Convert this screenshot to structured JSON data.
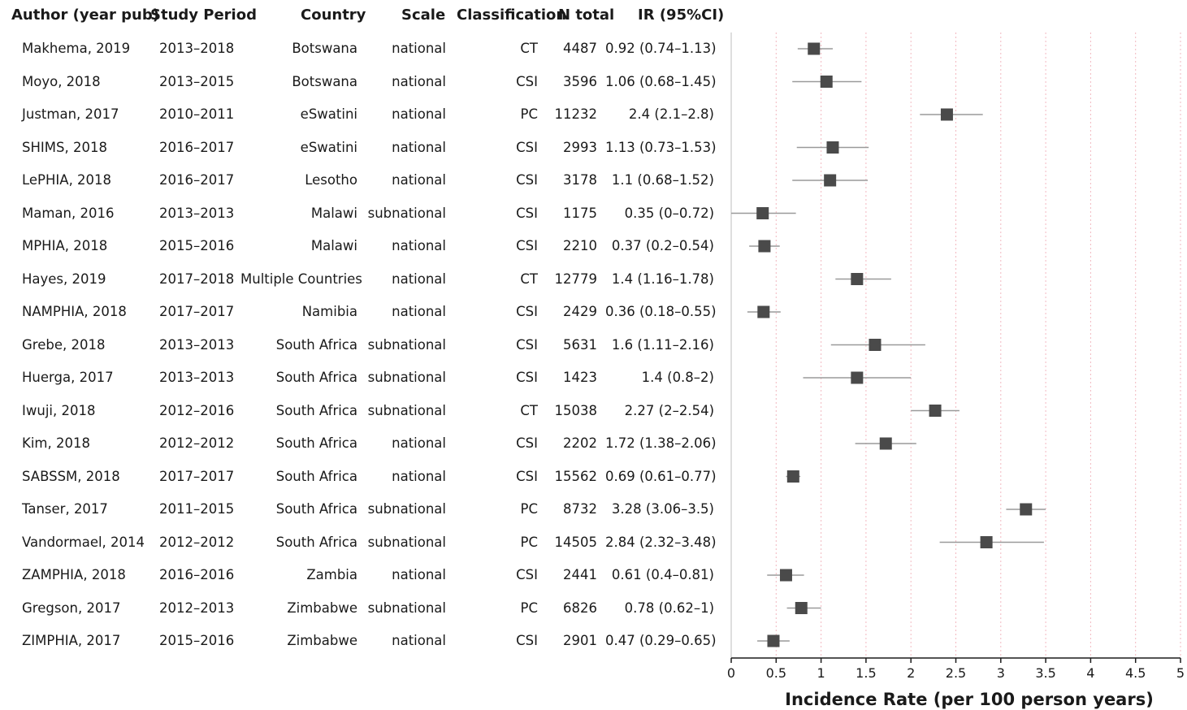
{
  "chart_data": {
    "type": "forest",
    "columns": {
      "author": "Author (year pub)",
      "period": "Study Period",
      "country": "Country",
      "scale": "Scale",
      "classification": "Classification",
      "n": "N total",
      "ir": "IR (95%CI)"
    },
    "xlabel": "Incidence Rate (per 100 person years)",
    "xlim": [
      0,
      5
    ],
    "xticks": [
      "0",
      "0.5",
      "1",
      "1.5",
      "2",
      "2.5",
      "3",
      "3.5",
      "4",
      "4.5",
      "5"
    ],
    "xtick_values": [
      0,
      0.5,
      1,
      1.5,
      2,
      2.5,
      3,
      3.5,
      4,
      4.5,
      5
    ],
    "grid": "vertical-dotted",
    "colors": {
      "marker": "#4a4a4a",
      "ci_line": "#9a9a9a",
      "grid": "#f2b8c0",
      "axis": "#1a1a1a"
    },
    "rows": [
      {
        "author": "Makhema, 2019",
        "period": "2013–2018",
        "country": "Botswana",
        "scale": "national",
        "classification": "CT",
        "n": "4487",
        "ir_text": "0.92 (0.74–1.13)",
        "ir": 0.92,
        "lo": 0.74,
        "hi": 1.13
      },
      {
        "author": "Moyo, 2018",
        "period": "2013–2015",
        "country": "Botswana",
        "scale": "national",
        "classification": "CSI",
        "n": "3596",
        "ir_text": "1.06 (0.68–1.45)",
        "ir": 1.06,
        "lo": 0.68,
        "hi": 1.45
      },
      {
        "author": "Justman, 2017",
        "period": "2010–2011",
        "country": "eSwatini",
        "scale": "national",
        "classification": "PC",
        "n": "11232",
        "ir_text": "2.4 (2.1–2.8)",
        "ir": 2.4,
        "lo": 2.1,
        "hi": 2.8
      },
      {
        "author": "SHIMS, 2018",
        "period": "2016–2017",
        "country": "eSwatini",
        "scale": "national",
        "classification": "CSI",
        "n": "2993",
        "ir_text": "1.13 (0.73–1.53)",
        "ir": 1.13,
        "lo": 0.73,
        "hi": 1.53
      },
      {
        "author": "LePHIA, 2018",
        "period": "2016–2017",
        "country": "Lesotho",
        "scale": "national",
        "classification": "CSI",
        "n": "3178",
        "ir_text": "1.1 (0.68–1.52)",
        "ir": 1.1,
        "lo": 0.68,
        "hi": 1.52
      },
      {
        "author": "Maman, 2016",
        "period": "2013–2013",
        "country": "Malawi",
        "scale": "subnational",
        "classification": "CSI",
        "n": "1175",
        "ir_text": "0.35 (0–0.72)",
        "ir": 0.35,
        "lo": 0,
        "hi": 0.72
      },
      {
        "author": "MPHIA, 2018",
        "period": "2015–2016",
        "country": "Malawi",
        "scale": "national",
        "classification": "CSI",
        "n": "2210",
        "ir_text": "0.37 (0.2–0.54)",
        "ir": 0.37,
        "lo": 0.2,
        "hi": 0.54
      },
      {
        "author": "Hayes, 2019",
        "period": "2017–2018",
        "country": "Multiple Countries",
        "scale": "national",
        "classification": "CT",
        "n": "12779",
        "ir_text": "1.4 (1.16–1.78)",
        "ir": 1.4,
        "lo": 1.16,
        "hi": 1.78
      },
      {
        "author": "NAMPHIA, 2018",
        "period": "2017–2017",
        "country": "Namibia",
        "scale": "national",
        "classification": "CSI",
        "n": "2429",
        "ir_text": "0.36 (0.18–0.55)",
        "ir": 0.36,
        "lo": 0.18,
        "hi": 0.55
      },
      {
        "author": "Grebe, 2018",
        "period": "2013–2013",
        "country": "South Africa",
        "scale": "subnational",
        "classification": "CSI",
        "n": "5631",
        "ir_text": "1.6 (1.11–2.16)",
        "ir": 1.6,
        "lo": 1.11,
        "hi": 2.16
      },
      {
        "author": "Huerga, 2017",
        "period": "2013–2013",
        "country": "South Africa",
        "scale": "subnational",
        "classification": "CSI",
        "n": "1423",
        "ir_text": "1.4 (0.8–2)",
        "ir": 1.4,
        "lo": 0.8,
        "hi": 2.0
      },
      {
        "author": "Iwuji, 2018",
        "period": "2012–2016",
        "country": "South Africa",
        "scale": "subnational",
        "classification": "CT",
        "n": "15038",
        "ir_text": "2.27 (2–2.54)",
        "ir": 2.27,
        "lo": 2.0,
        "hi": 2.54
      },
      {
        "author": "Kim, 2018",
        "period": "2012–2012",
        "country": "South Africa",
        "scale": "national",
        "classification": "CSI",
        "n": "2202",
        "ir_text": "1.72 (1.38–2.06)",
        "ir": 1.72,
        "lo": 1.38,
        "hi": 2.06
      },
      {
        "author": "SABSSM, 2018",
        "period": "2017–2017",
        "country": "South Africa",
        "scale": "national",
        "classification": "CSI",
        "n": "15562",
        "ir_text": "0.69 (0.61–0.77)",
        "ir": 0.69,
        "lo": 0.61,
        "hi": 0.77
      },
      {
        "author": "Tanser, 2017",
        "period": "2011–2015",
        "country": "South Africa",
        "scale": "subnational",
        "classification": "PC",
        "n": "8732",
        "ir_text": "3.28 (3.06–3.5)",
        "ir": 3.28,
        "lo": 3.06,
        "hi": 3.5
      },
      {
        "author": "Vandormael, 2014",
        "period": "2012–2012",
        "country": "South Africa",
        "scale": "subnational",
        "classification": "PC",
        "n": "14505",
        "ir_text": "2.84 (2.32–3.48)",
        "ir": 2.84,
        "lo": 2.32,
        "hi": 3.48
      },
      {
        "author": "ZAMPHIA, 2018",
        "period": "2016–2016",
        "country": "Zambia",
        "scale": "national",
        "classification": "CSI",
        "n": "2441",
        "ir_text": "0.61 (0.4–0.81)",
        "ir": 0.61,
        "lo": 0.4,
        "hi": 0.81
      },
      {
        "author": "Gregson, 2017",
        "period": "2012–2013",
        "country": "Zimbabwe",
        "scale": "subnational",
        "classification": "PC",
        "n": "6826",
        "ir_text": "0.78 (0.62–1)",
        "ir": 0.78,
        "lo": 0.62,
        "hi": 1.0
      },
      {
        "author": "ZIMPHIA, 2017",
        "period": "2015–2016",
        "country": "Zimbabwe",
        "scale": "national",
        "classification": "CSI",
        "n": "2901",
        "ir_text": "0.47 (0.29–0.65)",
        "ir": 0.47,
        "lo": 0.29,
        "hi": 0.65
      }
    ]
  }
}
